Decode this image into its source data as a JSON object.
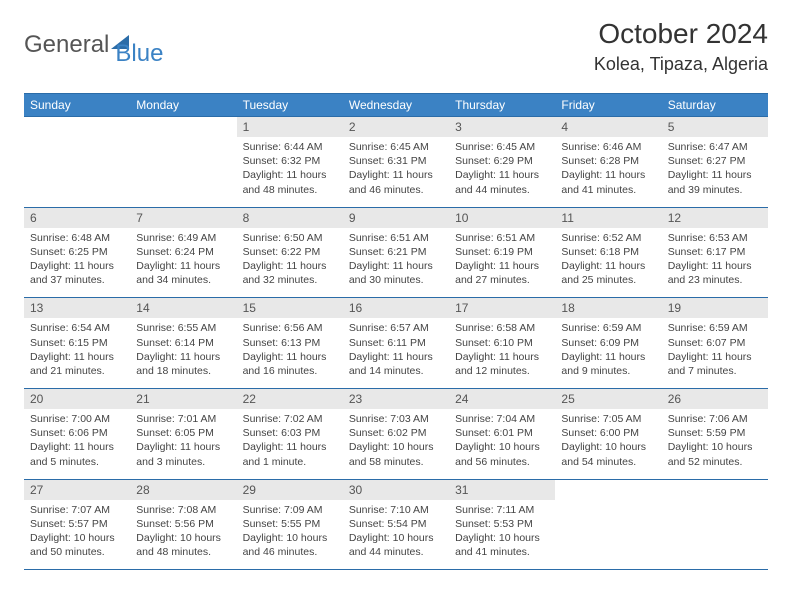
{
  "logo": {
    "text1": "General",
    "text2": "Blue"
  },
  "header": {
    "title": "October 2024",
    "location": "Kolea, Tipaza, Algeria"
  },
  "colors": {
    "header_bg": "#3b82c4",
    "header_text": "#ffffff",
    "daynum_bg": "#e8e8e8",
    "border": "#2b6ca8",
    "text": "#333333",
    "subtext": "#444444"
  },
  "daynames": [
    "Sunday",
    "Monday",
    "Tuesday",
    "Wednesday",
    "Thursday",
    "Friday",
    "Saturday"
  ],
  "weeks": [
    {
      "nums": [
        "",
        "",
        "1",
        "2",
        "3",
        "4",
        "5"
      ],
      "cells": [
        null,
        null,
        {
          "sunrise": "Sunrise: 6:44 AM",
          "sunset": "Sunset: 6:32 PM",
          "daylight": "Daylight: 11 hours and 48 minutes."
        },
        {
          "sunrise": "Sunrise: 6:45 AM",
          "sunset": "Sunset: 6:31 PM",
          "daylight": "Daylight: 11 hours and 46 minutes."
        },
        {
          "sunrise": "Sunrise: 6:45 AM",
          "sunset": "Sunset: 6:29 PM",
          "daylight": "Daylight: 11 hours and 44 minutes."
        },
        {
          "sunrise": "Sunrise: 6:46 AM",
          "sunset": "Sunset: 6:28 PM",
          "daylight": "Daylight: 11 hours and 41 minutes."
        },
        {
          "sunrise": "Sunrise: 6:47 AM",
          "sunset": "Sunset: 6:27 PM",
          "daylight": "Daylight: 11 hours and 39 minutes."
        }
      ]
    },
    {
      "nums": [
        "6",
        "7",
        "8",
        "9",
        "10",
        "11",
        "12"
      ],
      "cells": [
        {
          "sunrise": "Sunrise: 6:48 AM",
          "sunset": "Sunset: 6:25 PM",
          "daylight": "Daylight: 11 hours and 37 minutes."
        },
        {
          "sunrise": "Sunrise: 6:49 AM",
          "sunset": "Sunset: 6:24 PM",
          "daylight": "Daylight: 11 hours and 34 minutes."
        },
        {
          "sunrise": "Sunrise: 6:50 AM",
          "sunset": "Sunset: 6:22 PM",
          "daylight": "Daylight: 11 hours and 32 minutes."
        },
        {
          "sunrise": "Sunrise: 6:51 AM",
          "sunset": "Sunset: 6:21 PM",
          "daylight": "Daylight: 11 hours and 30 minutes."
        },
        {
          "sunrise": "Sunrise: 6:51 AM",
          "sunset": "Sunset: 6:19 PM",
          "daylight": "Daylight: 11 hours and 27 minutes."
        },
        {
          "sunrise": "Sunrise: 6:52 AM",
          "sunset": "Sunset: 6:18 PM",
          "daylight": "Daylight: 11 hours and 25 minutes."
        },
        {
          "sunrise": "Sunrise: 6:53 AM",
          "sunset": "Sunset: 6:17 PM",
          "daylight": "Daylight: 11 hours and 23 minutes."
        }
      ]
    },
    {
      "nums": [
        "13",
        "14",
        "15",
        "16",
        "17",
        "18",
        "19"
      ],
      "cells": [
        {
          "sunrise": "Sunrise: 6:54 AM",
          "sunset": "Sunset: 6:15 PM",
          "daylight": "Daylight: 11 hours and 21 minutes."
        },
        {
          "sunrise": "Sunrise: 6:55 AM",
          "sunset": "Sunset: 6:14 PM",
          "daylight": "Daylight: 11 hours and 18 minutes."
        },
        {
          "sunrise": "Sunrise: 6:56 AM",
          "sunset": "Sunset: 6:13 PM",
          "daylight": "Daylight: 11 hours and 16 minutes."
        },
        {
          "sunrise": "Sunrise: 6:57 AM",
          "sunset": "Sunset: 6:11 PM",
          "daylight": "Daylight: 11 hours and 14 minutes."
        },
        {
          "sunrise": "Sunrise: 6:58 AM",
          "sunset": "Sunset: 6:10 PM",
          "daylight": "Daylight: 11 hours and 12 minutes."
        },
        {
          "sunrise": "Sunrise: 6:59 AM",
          "sunset": "Sunset: 6:09 PM",
          "daylight": "Daylight: 11 hours and 9 minutes."
        },
        {
          "sunrise": "Sunrise: 6:59 AM",
          "sunset": "Sunset: 6:07 PM",
          "daylight": "Daylight: 11 hours and 7 minutes."
        }
      ]
    },
    {
      "nums": [
        "20",
        "21",
        "22",
        "23",
        "24",
        "25",
        "26"
      ],
      "cells": [
        {
          "sunrise": "Sunrise: 7:00 AM",
          "sunset": "Sunset: 6:06 PM",
          "daylight": "Daylight: 11 hours and 5 minutes."
        },
        {
          "sunrise": "Sunrise: 7:01 AM",
          "sunset": "Sunset: 6:05 PM",
          "daylight": "Daylight: 11 hours and 3 minutes."
        },
        {
          "sunrise": "Sunrise: 7:02 AM",
          "sunset": "Sunset: 6:03 PM",
          "daylight": "Daylight: 11 hours and 1 minute."
        },
        {
          "sunrise": "Sunrise: 7:03 AM",
          "sunset": "Sunset: 6:02 PM",
          "daylight": "Daylight: 10 hours and 58 minutes."
        },
        {
          "sunrise": "Sunrise: 7:04 AM",
          "sunset": "Sunset: 6:01 PM",
          "daylight": "Daylight: 10 hours and 56 minutes."
        },
        {
          "sunrise": "Sunrise: 7:05 AM",
          "sunset": "Sunset: 6:00 PM",
          "daylight": "Daylight: 10 hours and 54 minutes."
        },
        {
          "sunrise": "Sunrise: 7:06 AM",
          "sunset": "Sunset: 5:59 PM",
          "daylight": "Daylight: 10 hours and 52 minutes."
        }
      ]
    },
    {
      "nums": [
        "27",
        "28",
        "29",
        "30",
        "31",
        "",
        ""
      ],
      "cells": [
        {
          "sunrise": "Sunrise: 7:07 AM",
          "sunset": "Sunset: 5:57 PM",
          "daylight": "Daylight: 10 hours and 50 minutes."
        },
        {
          "sunrise": "Sunrise: 7:08 AM",
          "sunset": "Sunset: 5:56 PM",
          "daylight": "Daylight: 10 hours and 48 minutes."
        },
        {
          "sunrise": "Sunrise: 7:09 AM",
          "sunset": "Sunset: 5:55 PM",
          "daylight": "Daylight: 10 hours and 46 minutes."
        },
        {
          "sunrise": "Sunrise: 7:10 AM",
          "sunset": "Sunset: 5:54 PM",
          "daylight": "Daylight: 10 hours and 44 minutes."
        },
        {
          "sunrise": "Sunrise: 7:11 AM",
          "sunset": "Sunset: 5:53 PM",
          "daylight": "Daylight: 10 hours and 41 minutes."
        },
        null,
        null
      ]
    }
  ]
}
